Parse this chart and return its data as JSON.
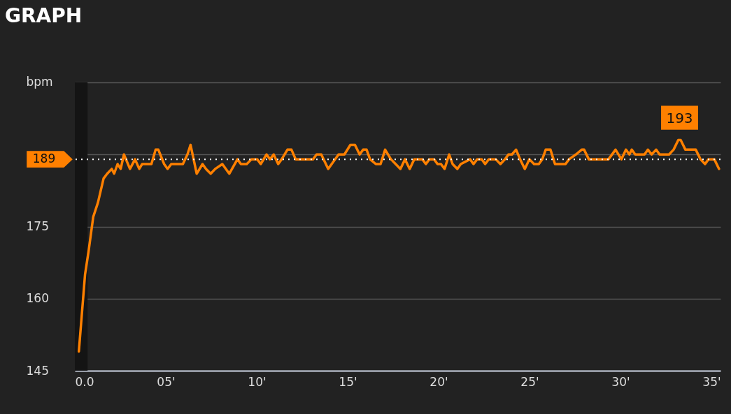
{
  "chart_data": {
    "type": "line",
    "title": "GRAPH",
    "ylabel": "bpm",
    "x": [
      0.22,
      0.56,
      0.76,
      1.01,
      1.27,
      1.58,
      1.78,
      2.03,
      2.16,
      2.35,
      2.52,
      2.7,
      3.03,
      3.31,
      3.54,
      3.7,
      4.21,
      4.44,
      4.59,
      4.91,
      5.1,
      5.3,
      5.94,
      6.19,
      6.36,
      6.7,
      7.02,
      7.21,
      7.47,
      7.72,
      8.11,
      8.49,
      8.94,
      9.13,
      9.45,
      9.71,
      10.03,
      10.22,
      10.54,
      10.73,
      10.93,
      11.18,
      11.37,
      11.69,
      11.91,
      12.14,
      13.1,
      13.29,
      13.55,
      13.93,
      14.12,
      14.5,
      14.82,
      15.15,
      15.4,
      15.66,
      15.85,
      16.04,
      16.23,
      16.55,
      16.81,
      17.06,
      17.38,
      17.64,
      17.9,
      18.15,
      18.41,
      18.66,
      19.11,
      19.3,
      19.49,
      19.75,
      19.94,
      20.13,
      20.33,
      20.58,
      20.77,
      21.03,
      21.22,
      21.73,
      21.92,
      22.12,
      22.37,
      22.56,
      22.76,
      23.14,
      23.4,
      23.65,
      23.84,
      24.03,
      24.26,
      24.48,
      24.74,
      24.99,
      25.25,
      25.51,
      25.7,
      25.89,
      26.15,
      26.4,
      26.98,
      27.17,
      27.55,
      27.87,
      28.0,
      28.26,
      29.34,
      29.73,
      30.05,
      30.3,
      30.49,
      30.62,
      30.81,
      31.32,
      31.51,
      31.71,
      31.96,
      32.15,
      32.67,
      32.92,
      33.18,
      33.31,
      33.57,
      34.14,
      34.4,
      34.65,
      34.84,
      35.16,
      35.42
    ],
    "series": [
      {
        "color": "#ff8000",
        "values": [
          149,
          165,
          170,
          177,
          180,
          185,
          186,
          187,
          186,
          188,
          187,
          190,
          187,
          189,
          187,
          188,
          188,
          191,
          191,
          188,
          187,
          188,
          188,
          190,
          192,
          186,
          188,
          187,
          186,
          187,
          188,
          186,
          189,
          188,
          188,
          189,
          189,
          188,
          190,
          189,
          190,
          188,
          189,
          191,
          191,
          189,
          189,
          190,
          190,
          187,
          188,
          190,
          190,
          192,
          192,
          190,
          191,
          191,
          189,
          188,
          188,
          191,
          189,
          188,
          187,
          189,
          187,
          189,
          189,
          188,
          189,
          189,
          188,
          188,
          187,
          190,
          188,
          187,
          188,
          189,
          188,
          189,
          189,
          188,
          189,
          189,
          188,
          189,
          190,
          190,
          191,
          189,
          187,
          189,
          188,
          188,
          189,
          191,
          191,
          188,
          188,
          189,
          190,
          191,
          191,
          189,
          189,
          191,
          189,
          191,
          190,
          191,
          190,
          190,
          191,
          190,
          191,
          190,
          190,
          191,
          193,
          193,
          191,
          191,
          189,
          188,
          189,
          189,
          187
        ]
      }
    ],
    "xlim": [
      0,
      35.5
    ],
    "xticks": [
      {
        "value": 0,
        "label": "0.0"
      },
      {
        "value": 5,
        "label": "05'"
      },
      {
        "value": 10,
        "label": "10'"
      },
      {
        "value": 15,
        "label": "15'"
      },
      {
        "value": 20,
        "label": "20'"
      },
      {
        "value": 25,
        "label": "25'"
      },
      {
        "value": 30,
        "label": "30'"
      },
      {
        "value": 35,
        "label": "35'"
      }
    ],
    "ylim": [
      145,
      205
    ],
    "yticks": [
      145,
      160,
      175,
      {
        "value": 190,
        "label": null
      },
      {
        "value": 205,
        "label": null
      }
    ],
    "grid": "y",
    "ref_lines": [
      {
        "axis": "y",
        "value": 189,
        "label": "189",
        "color": "#ffffff",
        "line_style": "dotted"
      }
    ],
    "bands": [
      {
        "axis": "x",
        "from": 0,
        "to": 0.7,
        "color": "#141414"
      }
    ],
    "annotations": [
      {
        "text": "193",
        "x": 33.25,
        "y": 193
      }
    ]
  }
}
